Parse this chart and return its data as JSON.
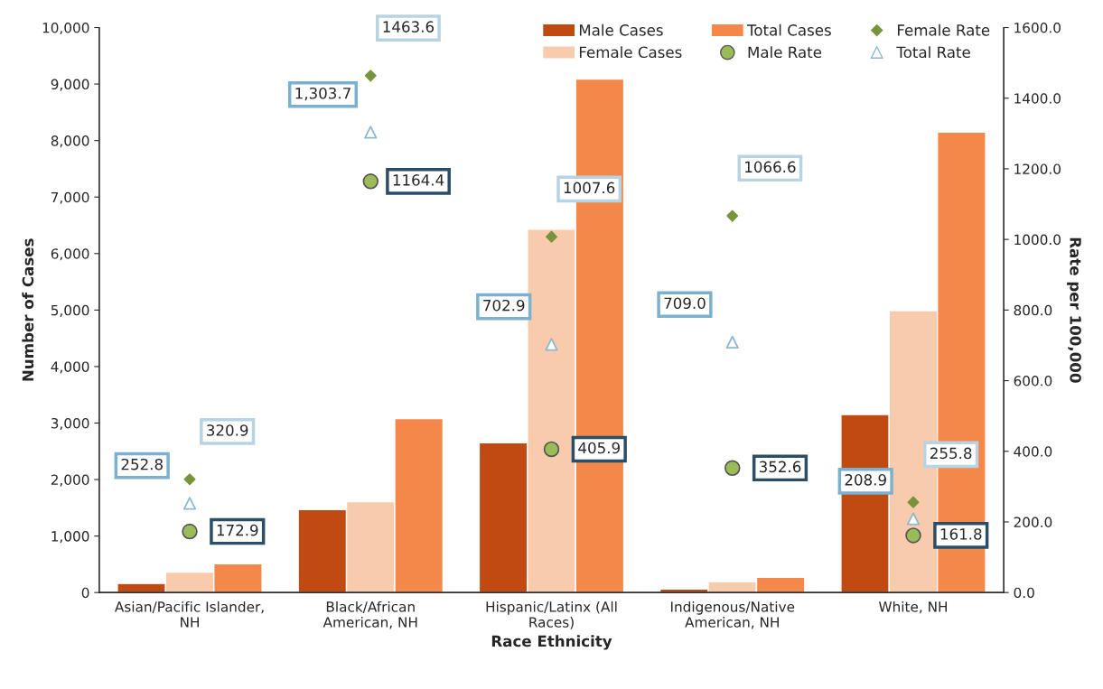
{
  "chart_data": {
    "type": "bar",
    "xlabel": "Race Ethnicity",
    "ylabel": "Number of Cases",
    "y2label": "Rate per 100,000",
    "categories": [
      "Asian/Pacific Islander,\nNH",
      "Black/African\nAmerican, NH",
      "Hispanic/Latinx (All\nRaces)",
      "Indigenous/Native\nAmerican, NH",
      "White, NH"
    ],
    "series": [
      {
        "name": "Male Cases",
        "color": "#c04a11",
        "values": [
          160,
          1470,
          2650,
          60,
          3150
        ]
      },
      {
        "name": "Female Cases",
        "color": "#f8cbad",
        "values": [
          360,
          1610,
          6430,
          190,
          4990
        ]
      },
      {
        "name": "Total Cases",
        "color": "#f4884a",
        "values": [
          510,
          3080,
          9090,
          270,
          8150
        ]
      },
      {
        "name": "Male Rate",
        "type": "scatter",
        "axis": "y2",
        "marker": "circle",
        "color": "#9bbb59",
        "values": [
          172.9,
          1164.4,
          405.9,
          352.6,
          161.8
        ],
        "value_labels": [
          "172.9",
          "1164.4",
          "405.9",
          "352.6",
          "161.8"
        ]
      },
      {
        "name": "Female Rate",
        "type": "scatter",
        "axis": "y2",
        "marker": "diamond",
        "color": "#77933c",
        "values": [
          320.9,
          1463.6,
          1007.6,
          1066.6,
          255.8
        ],
        "value_labels": [
          "320.9",
          "1463.6",
          "1007.6",
          "1066.6",
          "255.8"
        ]
      },
      {
        "name": "Total Rate",
        "type": "scatter",
        "axis": "y2",
        "marker": "triangle",
        "color": "#8fb8d0",
        "values": [
          252.8,
          1303.7,
          702.9,
          709.0,
          208.9
        ],
        "value_labels": [
          "252.8",
          "1,303.7",
          "702.9",
          "709.0",
          "208.9"
        ]
      }
    ],
    "ylim": [
      0,
      10000
    ],
    "yticks": [
      {
        "value": 0,
        "label": "0"
      },
      {
        "value": 1000,
        "label": "1,000"
      },
      {
        "value": 2000,
        "label": "2,000"
      },
      {
        "value": 3000,
        "label": "3,000"
      },
      {
        "value": 4000,
        "label": "4,000"
      },
      {
        "value": 5000,
        "label": "5,000"
      },
      {
        "value": 6000,
        "label": "6,000"
      },
      {
        "value": 7000,
        "label": "7,000"
      },
      {
        "value": 8000,
        "label": "8,000"
      },
      {
        "value": 9000,
        "label": "9,000"
      },
      {
        "value": 10000,
        "label": "10,000"
      }
    ],
    "y2lim": [
      0,
      1600
    ],
    "y2ticks": [
      {
        "value": 0,
        "label": "0.0"
      },
      {
        "value": 200,
        "label": "200.0"
      },
      {
        "value": 400,
        "label": "400.0"
      },
      {
        "value": 600,
        "label": "600.0"
      },
      {
        "value": 800,
        "label": "800.0"
      },
      {
        "value": 1000,
        "label": "1000.0"
      },
      {
        "value": 1200,
        "label": "1200.0"
      },
      {
        "value": 1400,
        "label": "1400.0"
      },
      {
        "value": 1600,
        "label": "1600.0"
      }
    ],
    "legend": "top right",
    "grid": false
  }
}
